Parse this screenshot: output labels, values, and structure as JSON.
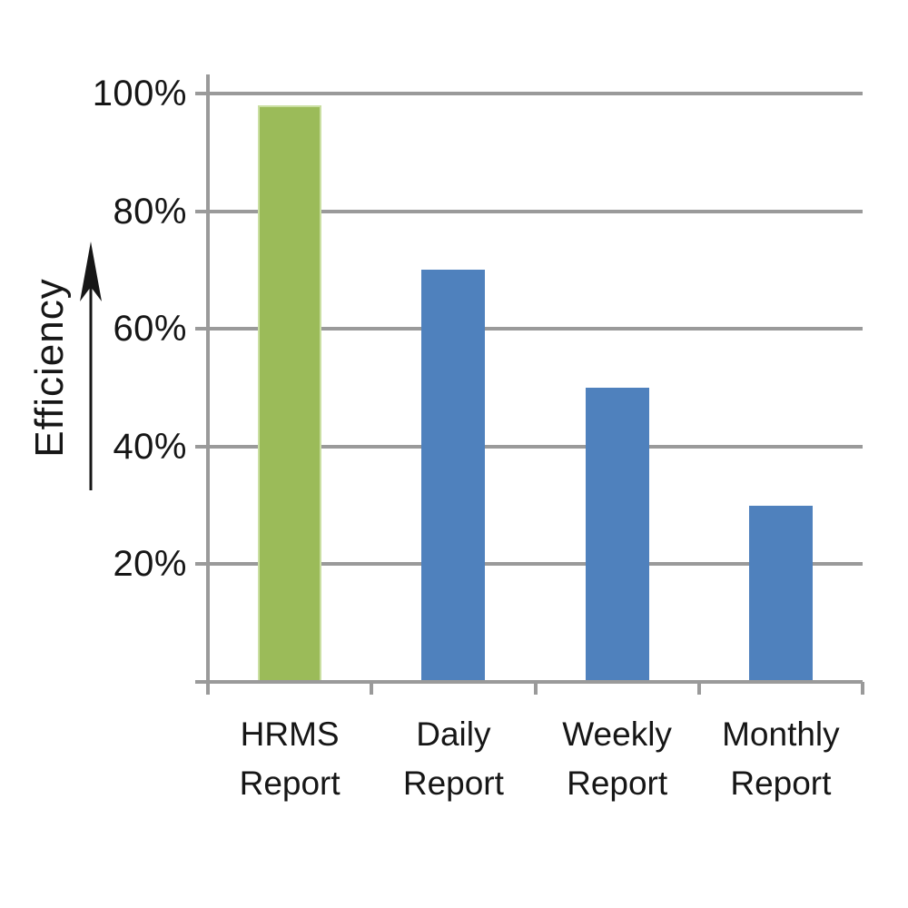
{
  "chart_data": {
    "type": "bar",
    "title": "",
    "ylabel": "Efficiency",
    "xlabel": "",
    "categories": [
      "HRMS Report",
      "Daily Report",
      "Weekly Report",
      "Monthly Report"
    ],
    "category_lines": [
      [
        "HRMS",
        "Report"
      ],
      [
        "Daily",
        "Report"
      ],
      [
        "Weekly",
        "Report"
      ],
      [
        "Monthly",
        "Report"
      ]
    ],
    "values": [
      98,
      70,
      50,
      30
    ],
    "unit": "%",
    "yticks": [
      20,
      40,
      60,
      80,
      100
    ],
    "ytick_labels": [
      "20%",
      "40%",
      "60%",
      "80%",
      "100%"
    ],
    "ylim": [
      0,
      105
    ],
    "grid": true,
    "legend": false,
    "bar_colors": [
      "#9bbb59",
      "#4f81bd",
      "#4f81bd",
      "#4f81bd"
    ],
    "bar_border_colors": [
      "#cadfa2",
      "transparent",
      "transparent",
      "transparent"
    ]
  },
  "colors": {
    "gridline": "#9a9a9a",
    "axis": "#9a9a9a",
    "text": "#161616",
    "background": "#ffffff",
    "accent_green": "#9bbb59",
    "accent_blue": "#4f81bd"
  }
}
